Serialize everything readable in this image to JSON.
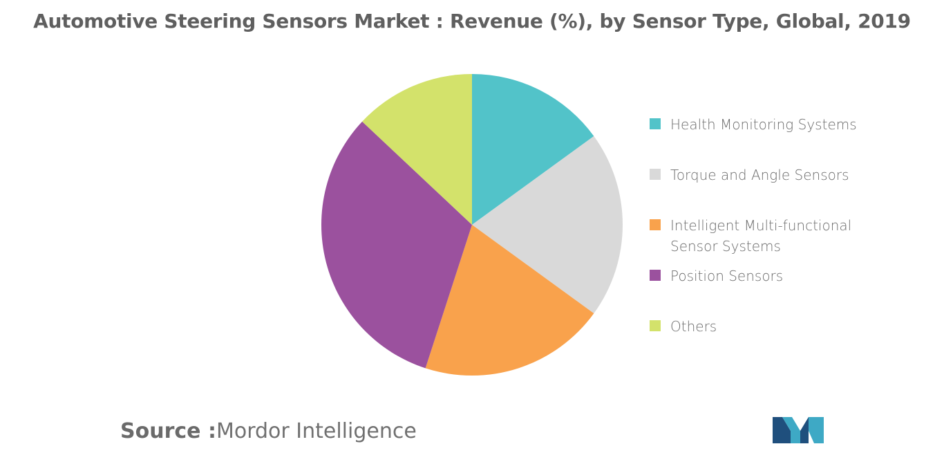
{
  "chart_data": {
    "type": "pie",
    "title": "Automotive Steering Sensors Market : Revenue (%), by Sensor Type, Global, 2019",
    "categories": [
      "Health Monitoring Systems",
      "Torque and Angle Sensors",
      "Intelligent Multi-functional Sensor Systems",
      "Position Sensors",
      "Others"
    ],
    "values": [
      15,
      20,
      20,
      32,
      13
    ],
    "colors": [
      "#52c3c9",
      "#d9d9d9",
      "#f9a24c",
      "#9b519e",
      "#d3e26b"
    ],
    "legend_position": "right",
    "legend_labels": [
      [
        "Health Monitoring Systems"
      ],
      [
        "Torque and Angle Sensors"
      ],
      [
        "Intelligent Multi-functional",
        "Sensor Systems"
      ],
      [
        "Position Sensors"
      ],
      [
        "Others"
      ]
    ]
  },
  "footer": {
    "source_label": "Source :",
    "source_name": "Mordor Intelligence"
  },
  "logo": {
    "icon": "mordor-intelligence-logo-icon",
    "colors": [
      "#1f4f7d",
      "#3ea9c5"
    ]
  }
}
